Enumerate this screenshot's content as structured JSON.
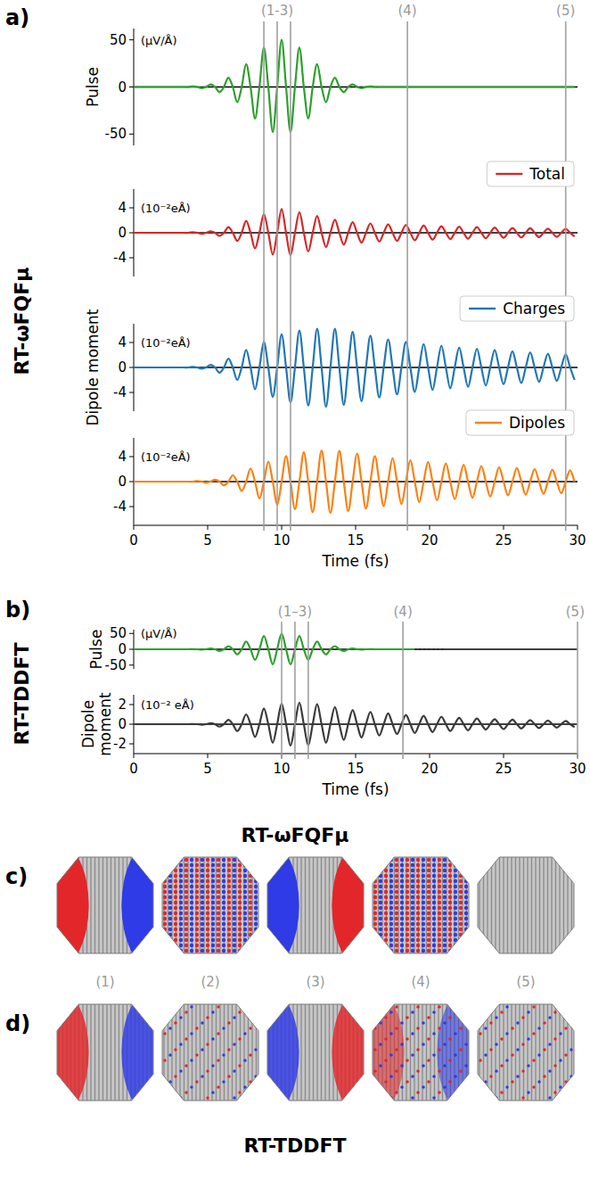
{
  "chart_data": [
    {
      "type": "line",
      "panel_label": "a)",
      "side_label": "RT-ωFQFμ",
      "x": [
        0,
        0.1,
        0.4,
        0.7,
        1.0,
        1.3,
        1.6,
        1.9,
        2.2,
        2.5,
        2.8,
        3.1,
        3.4,
        3.7,
        4.0,
        4.3,
        4.6,
        4.9,
        5.2,
        5.5,
        5.8,
        6.1,
        6.4,
        6.7,
        7.0,
        7.3,
        7.6,
        7.9,
        8.2,
        8.5,
        8.8,
        9.1,
        9.4,
        9.7,
        10.0,
        10.3,
        10.6,
        10.9,
        11.2,
        11.5,
        11.8,
        12.1,
        12.4,
        12.7,
        13.0,
        13.3,
        13.6,
        13.9,
        14.2,
        14.5,
        14.8,
        15.1,
        15.4,
        15.7,
        16.0,
        16.3,
        16.6,
        16.9,
        17.2,
        17.5,
        17.8,
        18.1,
        18.4,
        18.7,
        19.0,
        19.3,
        19.6,
        19.9,
        20.2,
        20.5,
        20.8,
        21.1,
        21.4,
        21.7,
        22.0,
        22.3,
        22.6,
        22.9,
        23.2,
        23.5,
        23.8,
        24.1,
        24.4,
        24.7,
        25.0,
        25.3,
        25.6,
        25.9,
        26.2,
        26.5,
        26.8,
        27.1,
        27.4,
        27.7,
        28.0,
        28.3,
        28.6,
        28.9,
        29.2,
        29.5,
        29.8
      ],
      "xlim": [
        0,
        30
      ],
      "xticks": [
        0,
        5,
        10,
        15,
        20,
        25,
        30
      ],
      "xlabel": "Time (fs)",
      "grid": false,
      "vlines": [
        {
          "label": "(1-3)",
          "x": [
            8.8,
            9.7,
            10.6
          ]
        },
        {
          "label": "(4)",
          "x": [
            18.5
          ]
        },
        {
          "label": "(5)",
          "x": [
            29.2
          ]
        }
      ],
      "subplots": [
        {
          "ylabel": "Pulse",
          "unit": "(μV/Å)",
          "ylim": [
            -62,
            62
          ],
          "yticks": [
            -50,
            0,
            50
          ],
          "hline": 0,
          "series": [
            {
              "color": "#2ca02c",
              "values": [
                0,
                0,
                0,
                0,
                0,
                0,
                0,
                0,
                0,
                0,
                0,
                0,
                0,
                0,
                0.6,
                0,
                -1.3,
                0,
                2.8,
                0,
                -5.5,
                0,
                9.9,
                0,
                -16.2,
                0,
                24.3,
                0,
                -33.4,
                0,
                41.8,
                0,
                -47.8,
                0,
                50,
                0,
                -47.8,
                0,
                41.8,
                0,
                -33.4,
                0,
                24.3,
                0,
                -16.2,
                0,
                9.9,
                0,
                -5.5,
                0,
                2.8,
                0,
                -1.3,
                0,
                0.6,
                0,
                0,
                0,
                0,
                0,
                0,
                0,
                0,
                0,
                0,
                0,
                0,
                0,
                0,
                0,
                0,
                0,
                0,
                0,
                0,
                0,
                0,
                0,
                0,
                0,
                0,
                0,
                0,
                0,
                0,
                0,
                0,
                0,
                0,
                0,
                0,
                0,
                0,
                0,
                0,
                0,
                0,
                0,
                0,
                0,
                0
              ]
            }
          ]
        },
        {
          "unit": "(10⁻²eÅ)",
          "ylim": [
            -7,
            7
          ],
          "yticks": [
            -4,
            0,
            4
          ],
          "hline": 0,
          "legend": "upper right",
          "series": [
            {
              "name": "Total",
              "color": "#d62728",
              "values": [
                0,
                0,
                0,
                0,
                0,
                0,
                0,
                0,
                0,
                0,
                0,
                0,
                0,
                0,
                0.1,
                0,
                -0.15,
                0,
                0.25,
                0,
                -0.5,
                0,
                0.9,
                0,
                -1.3,
                0,
                1.9,
                0,
                -2.5,
                0,
                3.0,
                0,
                -3.5,
                0,
                3.8,
                0,
                -3.6,
                0,
                3.3,
                0,
                -3.0,
                0,
                2.7,
                0,
                -2.3,
                0,
                2.1,
                0,
                -1.9,
                0,
                1.7,
                0,
                -1.6,
                0,
                1.5,
                0,
                -1.4,
                0,
                1.35,
                0,
                -1.3,
                0,
                1.25,
                0,
                -1.2,
                0,
                1.15,
                0,
                -1.1,
                0,
                1.05,
                0,
                -1.0,
                0,
                0.98,
                0,
                -0.95,
                0,
                0.9,
                0,
                -0.88,
                0,
                0.85,
                0,
                -0.8,
                0,
                0.78,
                0,
                -0.75,
                0,
                0.72,
                0,
                -0.7,
                0,
                0.67,
                0,
                -0.65,
                0,
                0.62,
                0,
                -0.6
              ]
            }
          ]
        },
        {
          "ylabel": "Dipole moment",
          "unit": "(10⁻²eÅ)",
          "ylim": [
            -7,
            7
          ],
          "yticks": [
            -4,
            0,
            4
          ],
          "hline": 0,
          "legend": "upper right",
          "series": [
            {
              "name": "Charges",
              "color": "#1f77b4",
              "values": [
                0,
                0,
                0,
                0,
                0,
                0,
                0,
                0,
                0,
                0,
                0,
                0,
                0,
                0,
                0.1,
                0,
                -0.2,
                0,
                0.4,
                0,
                -0.85,
                0,
                1.4,
                0,
                -2.0,
                0,
                2.8,
                0,
                -3.5,
                0,
                4.1,
                0,
                -4.7,
                0,
                5.3,
                0,
                -5.6,
                0,
                5.9,
                0,
                -6.1,
                0,
                6.2,
                0,
                -6.3,
                0,
                6.2,
                0,
                -6.0,
                0,
                5.7,
                0,
                -5.4,
                0,
                5.1,
                0,
                -4.8,
                0,
                4.5,
                0,
                -4.3,
                0,
                4.1,
                0,
                -3.9,
                0,
                3.75,
                0,
                -3.6,
                0,
                3.5,
                0,
                -3.35,
                0,
                3.2,
                0,
                -3.1,
                0,
                3.0,
                0,
                -2.9,
                0,
                2.8,
                0,
                -2.7,
                0,
                2.6,
                0,
                -2.5,
                0,
                2.4,
                0,
                -2.3,
                0,
                2.2,
                0,
                -2.15,
                0,
                2.1,
                0,
                -2.0
              ]
            }
          ]
        },
        {
          "unit": "(10⁻²eÅ)",
          "ylim": [
            -7,
            7
          ],
          "yticks": [
            -4,
            0,
            4
          ],
          "hline": 0,
          "legend": "upper right",
          "series": [
            {
              "name": "Dipoles",
              "color": "#ff7f0e",
              "values": [
                0,
                0,
                0,
                0,
                0,
                0,
                0,
                0,
                0,
                0,
                0,
                0,
                0,
                0,
                0,
                0.1,
                0,
                -0.15,
                0,
                0.3,
                0,
                -0.6,
                0,
                1.0,
                0,
                -1.5,
                0,
                2.1,
                0,
                -2.7,
                0,
                3.2,
                0,
                -3.7,
                0,
                4.1,
                0,
                -4.4,
                0,
                4.7,
                0,
                -4.9,
                0,
                5.0,
                0,
                -5.0,
                0,
                4.9,
                0,
                -4.7,
                0,
                4.5,
                0,
                -4.3,
                0,
                4.1,
                0,
                -3.9,
                0,
                3.75,
                0,
                -3.6,
                0,
                3.45,
                0,
                -3.3,
                0,
                3.15,
                0,
                -3.0,
                0,
                2.9,
                0,
                -2.8,
                0,
                2.7,
                0,
                -2.6,
                0,
                2.5,
                0,
                -2.4,
                0,
                2.3,
                0,
                -2.2,
                0,
                2.15,
                0,
                -2.1,
                0,
                2.0,
                0,
                -1.95,
                0,
                1.9,
                0,
                -1.85,
                0,
                1.8,
                0
              ]
            }
          ]
        }
      ]
    },
    {
      "type": "line",
      "panel_label": "b)",
      "side_label": "RT-TDDFT",
      "x": [
        0,
        0.1,
        0.4,
        0.7,
        1.0,
        1.3,
        1.6,
        1.9,
        2.2,
        2.5,
        2.8,
        3.1,
        3.4,
        3.7,
        4.0,
        4.3,
        4.6,
        4.9,
        5.2,
        5.5,
        5.8,
        6.1,
        6.4,
        6.7,
        7.0,
        7.3,
        7.6,
        7.9,
        8.2,
        8.5,
        8.8,
        9.1,
        9.4,
        9.7,
        10.0,
        10.3,
        10.6,
        10.9,
        11.2,
        11.5,
        11.8,
        12.1,
        12.4,
        12.7,
        13.0,
        13.3,
        13.6,
        13.9,
        14.2,
        14.5,
        14.8,
        15.1,
        15.4,
        15.7,
        16.0,
        16.3,
        16.6,
        16.9,
        17.2,
        17.5,
        17.8,
        18.1,
        18.4,
        18.7,
        19.0,
        19.3,
        19.6,
        19.9,
        20.2,
        20.5,
        20.8,
        21.1,
        21.4,
        21.7,
        22.0,
        22.3,
        22.6,
        22.9,
        23.2,
        23.5,
        23.8,
        24.1,
        24.4,
        24.7,
        25.0,
        25.3,
        25.6,
        25.9,
        26.2,
        26.5,
        26.8,
        27.1,
        27.4,
        27.7,
        28.0,
        28.3,
        28.6,
        28.9,
        29.2,
        29.5,
        29.8
      ],
      "xlim": [
        0,
        30
      ],
      "xticks": [
        0,
        5,
        10,
        15,
        20,
        25,
        30
      ],
      "xlabel": "Time (fs)",
      "grid": false,
      "vlines": [
        {
          "label": "(1–3)",
          "x": [
            10.0,
            10.9,
            11.8
          ]
        },
        {
          "label": "(4)",
          "x": [
            18.2
          ]
        },
        {
          "label": "(5)",
          "x": [
            30
          ]
        }
      ],
      "subplots": [
        {
          "ylabel": "Pulse",
          "unit": "(μV/Å)",
          "ylim": [
            -62,
            62
          ],
          "yticks": [
            -50,
            0,
            50
          ],
          "hline": 0,
          "series": [
            {
              "color": "#2ca02c",
              "values": [
                0,
                0,
                0,
                0,
                0,
                0,
                0,
                0,
                0,
                0,
                0,
                0,
                0,
                0,
                0.6,
                0,
                -1.3,
                0,
                2.8,
                0,
                -5.5,
                0,
                9.9,
                0,
                -16.2,
                0,
                24.3,
                0,
                -33.4,
                0,
                41.8,
                0,
                -47.8,
                0,
                50,
                0,
                -47.8,
                0,
                41.8,
                0,
                -33.4,
                0,
                24.3,
                0,
                -16.2,
                0,
                9.9,
                0,
                -5.5,
                0,
                2.8,
                0,
                -1.3,
                0,
                0.6,
                0,
                0,
                0,
                0,
                0,
                0,
                0,
                0,
                0,
                0,
                null,
                null,
                null,
                null,
                null,
                null,
                null,
                null,
                null,
                null,
                null,
                null,
                null,
                null,
                null,
                null,
                null,
                null,
                null,
                null,
                null,
                null,
                null,
                null,
                null,
                null,
                null,
                null,
                null,
                null,
                null,
                null,
                null,
                null,
                null,
                null
              ]
            },
            {
              "color": "#222222",
              "line_style": "dotted",
              "x": [
                19.0,
                21.0
              ],
              "values": [
                0,
                0
              ]
            }
          ]
        },
        {
          "ylabel": "Dipole moment",
          "unit": "(10⁻² eÅ)",
          "ylim": [
            -3,
            3
          ],
          "yticks": [
            -2,
            0,
            2
          ],
          "hline": 0,
          "series": [
            {
              "color": "#3a3a3a",
              "values": [
                0,
                0,
                0,
                0,
                0,
                0,
                0,
                0,
                0,
                0,
                0,
                0,
                0,
                0,
                0.02,
                0,
                -0.05,
                0,
                0.1,
                0,
                -0.25,
                0,
                0.45,
                0,
                -0.7,
                0,
                1.0,
                0,
                -1.3,
                0,
                1.6,
                0,
                -1.9,
                0,
                2.1,
                0,
                -2.2,
                0,
                2.2,
                0,
                -2.15,
                0,
                2.05,
                0,
                -1.9,
                0,
                1.75,
                0,
                -1.6,
                0,
                1.45,
                0,
                -1.35,
                0,
                1.25,
                0,
                -1.15,
                0,
                1.1,
                0,
                -1.0,
                0,
                0.95,
                0,
                -0.9,
                0,
                0.85,
                0,
                -0.8,
                0,
                0.75,
                0,
                -0.7,
                0,
                0.65,
                0,
                -0.62,
                0,
                0.58,
                0,
                -0.55,
                0,
                0.52,
                0,
                -0.5,
                0,
                0.47,
                0,
                -0.44,
                0,
                0.42,
                0,
                -0.39,
                0,
                0.37,
                0,
                -0.35,
                0,
                0.33,
                0,
                -0.3
              ]
            }
          ]
        }
      ]
    }
  ],
  "snapshots": {
    "title_top": "RT-ωFQFμ",
    "title_bottom": "RT-TDDFT",
    "rows": [
      "c)",
      "d)"
    ],
    "columns": [
      "(1)",
      "(2)",
      "(3)",
      "(4)",
      "(5)"
    ]
  }
}
